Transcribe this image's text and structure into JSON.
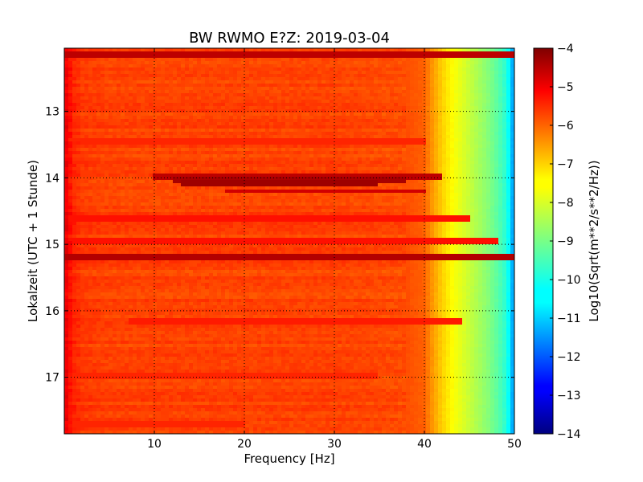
{
  "chart_data": {
    "type": "heatmap",
    "title": "BW RWMO E?Z: 2019-03-04",
    "xlabel": "Frequency [Hz]",
    "ylabel": "Lokalzeit (UTC + 1 Stunde)",
    "xlim": [
      0,
      50
    ],
    "ylim": [
      12.05,
      17.85
    ],
    "y_inverted": true,
    "xticks": [
      10,
      20,
      30,
      40,
      50
    ],
    "yticks": [
      13,
      14,
      15,
      16,
      17
    ],
    "grid": true,
    "colormap": "jet",
    "colorbar": {
      "label": "Log10(Sqrt(m**2/s**2/Hz))",
      "range": [
        -14,
        -4
      ],
      "ticks": [
        -4,
        -5,
        -6,
        -7,
        -8,
        -9,
        -10,
        -11,
        -12,
        -13,
        -14
      ]
    },
    "spectral_profile": {
      "frequency_hz": [
        0,
        0.5,
        1,
        2,
        5,
        10,
        20,
        30,
        38,
        40,
        41,
        42,
        43,
        44,
        45,
        46,
        47,
        48,
        49,
        49.5,
        50
      ],
      "level": [
        -5.0,
        -5.3,
        -5.6,
        -5.8,
        -5.9,
        -5.9,
        -5.9,
        -5.9,
        -6.0,
        -6.2,
        -6.8,
        -7.3,
        -7.7,
        -8.0,
        -8.3,
        -8.6,
        -8.9,
        -9.3,
        -9.8,
        -10.4,
        -11.5
      ]
    },
    "bands": [
      {
        "t": 12.13,
        "f_start": 0,
        "f_end": 50,
        "level": -4.6
      },
      {
        "t": 13.45,
        "f_start": 0,
        "f_end": 40,
        "level": -5.6
      },
      {
        "t": 13.98,
        "f_start": 10,
        "f_end": 42,
        "level": -4.6
      },
      {
        "t": 14.05,
        "f_start": 12,
        "f_end": 38,
        "level": -4.4
      },
      {
        "t": 14.1,
        "f_start": 13,
        "f_end": 35,
        "level": -4.3
      },
      {
        "t": 14.2,
        "f_start": 18,
        "f_end": 40,
        "level": -4.8
      },
      {
        "t": 14.6,
        "f_start": 0,
        "f_end": 45,
        "level": -5.4
      },
      {
        "t": 14.93,
        "f_start": 0,
        "f_end": 48,
        "level": -5.4
      },
      {
        "t": 15.2,
        "f_start": 0,
        "f_end": 50,
        "level": -4.5
      },
      {
        "t": 16.15,
        "f_start": 7,
        "f_end": 44,
        "level": -5.5
      },
      {
        "t": 17.0,
        "f_start": 0,
        "f_end": 35,
        "level": -5.6
      },
      {
        "t": 17.7,
        "f_start": 0,
        "f_end": 20,
        "level": -5.6
      }
    ]
  }
}
